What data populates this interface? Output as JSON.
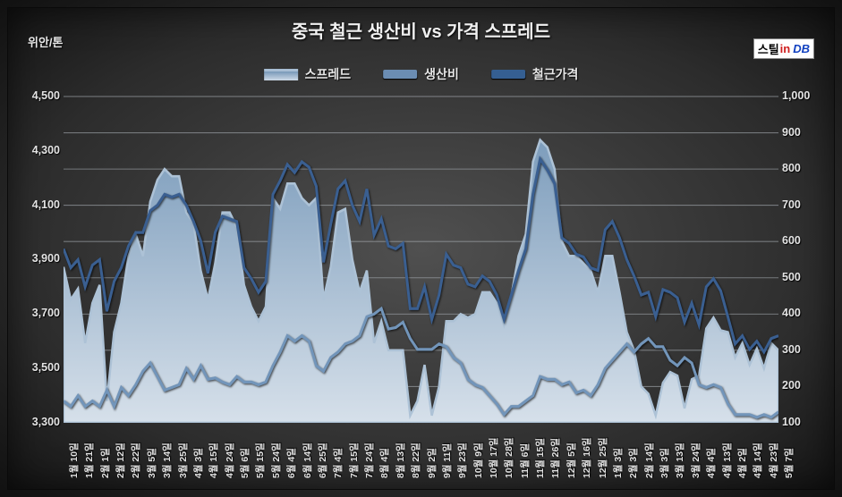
{
  "chart": {
    "type": "line+area",
    "title": "중국 철근 생산비 vs 가격 스프레드",
    "y_axis_unit": "위안/톤",
    "brand": {
      "part1": "스틸",
      "part2": "in",
      "part3": "DB"
    },
    "colors": {
      "background_center": "#505050",
      "background_edge": "#151515",
      "grid": "#aeb4ba",
      "text": "#e4e4e4",
      "area_top": "#7d9dbc",
      "area_bottom": "#d6e0ea",
      "area_stroke": "#adc2d6",
      "line_prod": "#7295ba",
      "line_price": "#3a5f91"
    },
    "legend": [
      {
        "name": "스프레드",
        "style": "area"
      },
      {
        "name": "생산비",
        "style": "line1"
      },
      {
        "name": "철근가격",
        "style": "line2"
      }
    ],
    "y_left": {
      "min": 3300,
      "max": 4500,
      "step": 200
    },
    "y_right": {
      "min": 100,
      "max": 1000,
      "step": 100
    },
    "x_labels": [
      "1월 10일",
      "1월 21일",
      "2월 1일",
      "2월 12일",
      "2월 22일",
      "3월 5일",
      "3월 14일",
      "3월 25일",
      "4월 3일",
      "4월 15일",
      "4월 24일",
      "5월 6일",
      "5월 15일",
      "5월 24일",
      "6월 4일",
      "6월 14일",
      "6월 25일",
      "7월 4일",
      "7월 15일",
      "7월 24일",
      "8월 4일",
      "8월 13일",
      "8월 22일",
      "9월 2일",
      "9월 11일",
      "9월 23일",
      "10월 9일",
      "10월 17일",
      "10월 28일",
      "11월 6일",
      "11월 15일",
      "11월 26일",
      "12월 5일",
      "12월 16일",
      "12월 25일",
      "1월 3일",
      "2월 3일",
      "2월 14일",
      "3월 3일",
      "3월 13일",
      "3월 24일",
      "4월 4일",
      "4월 13일",
      "4월 2일",
      "4월 14일",
      "4월 23일",
      "5월 7일"
    ],
    "series": {
      "spread": [
        530,
        440,
        470,
        320,
        430,
        480,
        160,
        350,
        430,
        560,
        620,
        560,
        710,
        770,
        800,
        780,
        780,
        680,
        650,
        520,
        440,
        540,
        680,
        680,
        640,
        480,
        420,
        380,
        420,
        720,
        690,
        760,
        760,
        720,
        700,
        720,
        440,
        530,
        680,
        690,
        550,
        460,
        520,
        320,
        380,
        300,
        300,
        300,
        120,
        160,
        260,
        120,
        200,
        380,
        380,
        400,
        390,
        400,
        460,
        460,
        430,
        370,
        450,
        560,
        620,
        820,
        880,
        860,
        800,
        600,
        560,
        560,
        540,
        520,
        460,
        560,
        560,
        460,
        350,
        300,
        200,
        180,
        120,
        210,
        240,
        230,
        140,
        220,
        230,
        360,
        390,
        355,
        350,
        280,
        320,
        260,
        305,
        250,
        320,
        300
      ],
      "prod": [
        3380,
        3360,
        3400,
        3360,
        3380,
        3360,
        3420,
        3360,
        3430,
        3400,
        3440,
        3490,
        3520,
        3470,
        3420,
        3430,
        3440,
        3500,
        3460,
        3510,
        3460,
        3465,
        3450,
        3440,
        3470,
        3450,
        3450,
        3440,
        3450,
        3510,
        3560,
        3620,
        3600,
        3620,
        3600,
        3510,
        3490,
        3540,
        3560,
        3590,
        3600,
        3620,
        3690,
        3700,
        3720,
        3645,
        3650,
        3670,
        3610,
        3570,
        3570,
        3570,
        3590,
        3580,
        3540,
        3520,
        3460,
        3440,
        3430,
        3400,
        3370,
        3330,
        3360,
        3360,
        3380,
        3400,
        3470,
        3460,
        3460,
        3440,
        3450,
        3410,
        3420,
        3400,
        3440,
        3500,
        3530,
        3560,
        3590,
        3560,
        3590,
        3610,
        3580,
        3580,
        3530,
        3510,
        3540,
        3520,
        3440,
        3430,
        3440,
        3430,
        3370,
        3330,
        3330,
        3330,
        3320,
        3330,
        3320,
        3340
      ],
      "price": [
        3940,
        3870,
        3900,
        3800,
        3880,
        3900,
        3710,
        3820,
        3870,
        3950,
        4000,
        4000,
        4080,
        4100,
        4140,
        4130,
        4140,
        4100,
        4040,
        3970,
        3850,
        4000,
        4060,
        4050,
        4040,
        3870,
        3830,
        3780,
        3820,
        4140,
        4190,
        4250,
        4220,
        4260,
        4240,
        4170,
        3890,
        4030,
        4160,
        4190,
        4100,
        4040,
        4160,
        3990,
        4050,
        3950,
        3940,
        3960,
        3720,
        3720,
        3800,
        3680,
        3770,
        3920,
        3880,
        3870,
        3810,
        3800,
        3840,
        3820,
        3770,
        3680,
        3770,
        3860,
        3940,
        4140,
        4270,
        4230,
        4180,
        3980,
        3960,
        3920,
        3910,
        3870,
        3860,
        4010,
        4040,
        3980,
        3900,
        3840,
        3770,
        3780,
        3690,
        3790,
        3780,
        3760,
        3670,
        3740,
        3660,
        3800,
        3830,
        3785,
        3690,
        3590,
        3620,
        3570,
        3600,
        3560,
        3610,
        3620
      ]
    },
    "font": {
      "title_size": 20,
      "label_size": 12.5,
      "xlabel_size": 10.5,
      "legend_size": 14
    },
    "stroke_widths": {
      "area": 2.5,
      "lines": 3
    }
  }
}
